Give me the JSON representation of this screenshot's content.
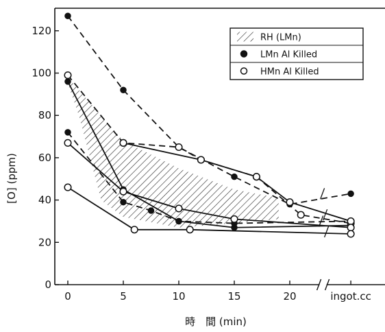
{
  "chart_data": {
    "type": "line",
    "xlabel": "時　間 (min)",
    "ylabel": "[O] (ppm)",
    "ylim": [
      0,
      130
    ],
    "xlim": [
      -1,
      27
    ],
    "yticks": [
      0,
      20,
      40,
      60,
      80,
      100,
      120
    ],
    "xticks": [
      {
        "x": 0,
        "label": "0"
      },
      {
        "x": 5,
        "label": "5"
      },
      {
        "x": 10,
        "label": "10"
      },
      {
        "x": 15,
        "label": "15"
      },
      {
        "x": 20,
        "label": "20"
      },
      {
        "x": 25.5,
        "label": "ingot.cc"
      }
    ],
    "axis_break_x": 23,
    "legend": {
      "placement": "top-right",
      "entries": [
        {
          "marker": "hatch",
          "label": "RH (LMn)"
        },
        {
          "marker": "filled-circle",
          "label": "LMn Al Killed"
        },
        {
          "marker": "open-circle",
          "label": "HMn Al Killed"
        }
      ]
    },
    "band": {
      "name": "RH (LMn)",
      "upper": [
        [
          0,
          98
        ],
        [
          5,
          68
        ],
        [
          10,
          55
        ],
        [
          15,
          45
        ],
        [
          19,
          41
        ]
      ],
      "lower": [
        [
          19,
          31
        ],
        [
          15,
          29
        ],
        [
          10,
          27
        ],
        [
          5,
          32
        ],
        [
          3,
          40
        ],
        [
          1,
          80
        ],
        [
          0,
          95
        ]
      ]
    },
    "series": [
      {
        "marker": "filled",
        "dash": true,
        "points": [
          [
            0,
            127
          ],
          [
            5,
            92
          ],
          [
            10,
            65
          ],
          [
            15,
            51
          ],
          [
            20,
            38
          ],
          [
            25.5,
            43
          ]
        ]
      },
      {
        "marker": "filled",
        "dash": false,
        "points": [
          [
            0,
            96
          ],
          [
            5,
            45
          ],
          [
            10,
            30
          ],
          [
            15,
            27
          ],
          [
            25.5,
            28
          ]
        ]
      },
      {
        "marker": "filled",
        "dash": true,
        "points": [
          [
            0,
            72
          ],
          [
            5,
            39
          ],
          [
            7.5,
            35
          ],
          [
            10,
            30
          ],
          [
            15,
            29
          ],
          [
            25.5,
            30
          ]
        ]
      },
      {
        "marker": "open",
        "dash": true,
        "points": [
          [
            0,
            99
          ],
          [
            5,
            67
          ],
          [
            10,
            65
          ],
          [
            12,
            59
          ],
          [
            17,
            51
          ],
          [
            21,
            33
          ],
          [
            25.5,
            29
          ]
        ]
      },
      {
        "marker": "open",
        "dash": false,
        "points": [
          [
            5,
            67
          ],
          [
            12,
            59
          ],
          [
            17,
            51
          ],
          [
            20,
            39
          ],
          [
            25.5,
            30
          ]
        ]
      },
      {
        "marker": "open",
        "dash": false,
        "points": [
          [
            0,
            67
          ],
          [
            5,
            44
          ],
          [
            10,
            36
          ],
          [
            15,
            31
          ],
          [
            25.5,
            27
          ]
        ]
      },
      {
        "marker": "open",
        "dash": false,
        "points": [
          [
            0,
            46
          ],
          [
            6,
            26
          ],
          [
            11,
            26
          ],
          [
            25.5,
            24
          ]
        ]
      }
    ]
  }
}
